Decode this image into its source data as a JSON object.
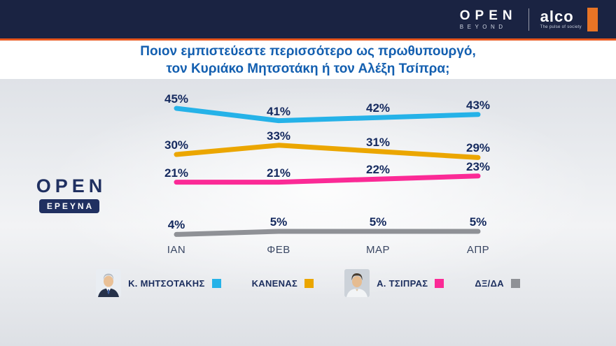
{
  "header": {
    "open_logo": "OPEN",
    "open_sub": "BEYOND",
    "alco_logo": "alco",
    "alco_tagline": "The pulse of society"
  },
  "title": {
    "line1": "Ποιον εμπιστεύεστε περισσότερο ως πρωθυπουργό,",
    "line2": "τον Κυριάκο Μητσοτάκη ή τον Αλέξη Τσίπρα;"
  },
  "station_logo": {
    "name": "OPEN",
    "sub": "ΕΡΕΥΝΑ"
  },
  "chart_data": {
    "type": "line",
    "categories": [
      "ΙΑΝ",
      "ΦΕΒ",
      "ΜΑΡ",
      "ΑΠΡ"
    ],
    "series": [
      {
        "name": "Κ. ΜΗΤΣΟΤΑΚΗΣ",
        "color": "#25b2e8",
        "values": [
          45,
          41,
          42,
          43
        ]
      },
      {
        "name": "ΚΑΝΕΝΑΣ",
        "color": "#eba600",
        "values": [
          30,
          33,
          31,
          29
        ]
      },
      {
        "name": "Α. ΤΣΙΠΡΑΣ",
        "color": "#fb2a96",
        "values": [
          21,
          21,
          22,
          23
        ]
      },
      {
        "name": "ΔΞ/ΔΑ",
        "color": "#8f9196",
        "values": [
          4,
          5,
          5,
          5
        ]
      }
    ],
    "ylim": [
      0,
      50
    ],
    "grid": false,
    "legend_position": "bottom",
    "value_label_format": "{v}%"
  },
  "legend": {
    "items": [
      {
        "label": "Κ. ΜΗΤΣΟΤΑΚΗΣ",
        "color": "#25b2e8",
        "photo": "mitsotakis-photo"
      },
      {
        "label": "ΚΑΝΕΝΑΣ",
        "color": "#eba600",
        "photo": null
      },
      {
        "label": "Α. ΤΣΙΠΡΑΣ",
        "color": "#fb2a96",
        "photo": "tsipras-photo"
      },
      {
        "label": "ΔΞ/ΔΑ",
        "color": "#8f9196",
        "photo": null
      }
    ]
  }
}
